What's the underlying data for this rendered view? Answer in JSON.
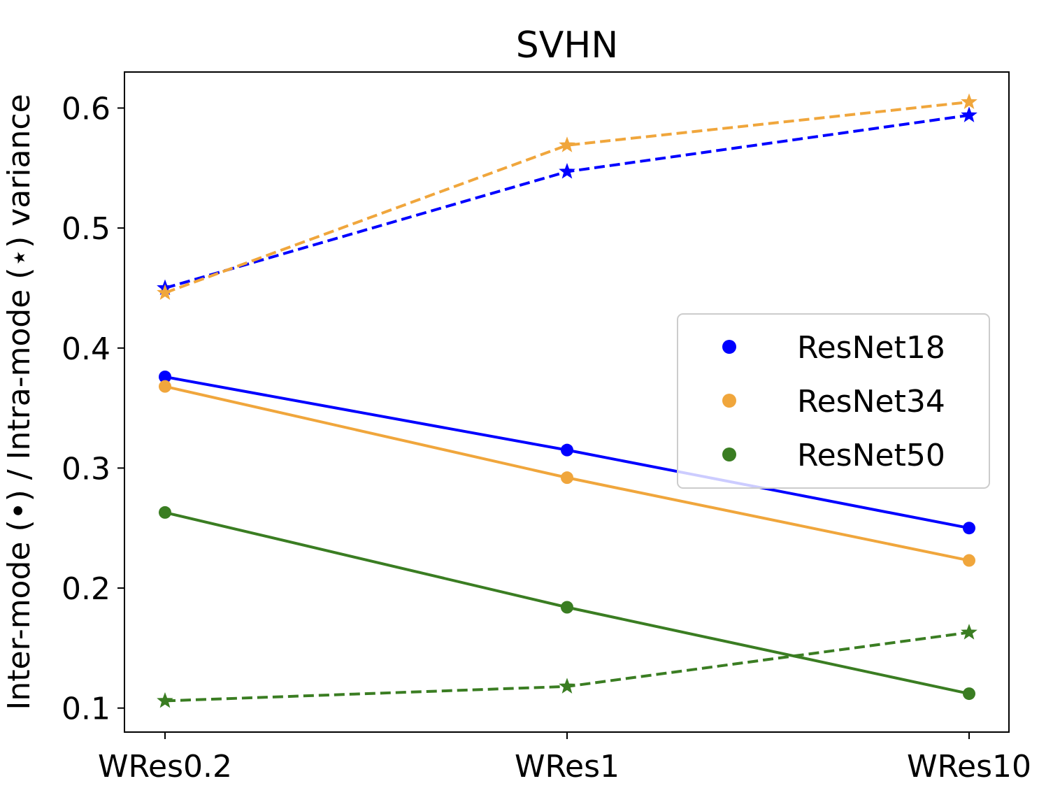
{
  "chart_data": {
    "type": "line",
    "title": "SVHN",
    "xlabel": "",
    "ylabel": "Inter-mode (•) / Intra-mode (⋆) variance",
    "categories": [
      "WRes0.2",
      "WRes1",
      "WRes10"
    ],
    "ylim": [
      0.08,
      0.63
    ],
    "yticks": [
      "0.1",
      "0.2",
      "0.3",
      "0.4",
      "0.5",
      "0.6"
    ],
    "grid": false,
    "legend_position": "center-right",
    "series": [
      {
        "name": "ResNet18",
        "color": "#0000ff",
        "inter_mode": [
          0.376,
          0.315,
          0.25
        ],
        "intra_mode": [
          0.45,
          0.547,
          0.594
        ]
      },
      {
        "name": "ResNet34",
        "color": "#f0a63c",
        "inter_mode": [
          0.368,
          0.292,
          0.223
        ],
        "intra_mode": [
          0.446,
          0.569,
          0.605
        ]
      },
      {
        "name": "ResNet50",
        "color": "#3a7d22",
        "inter_mode": [
          0.263,
          0.184,
          0.112
        ],
        "intra_mode": [
          0.106,
          0.118,
          0.163
        ]
      }
    ]
  }
}
